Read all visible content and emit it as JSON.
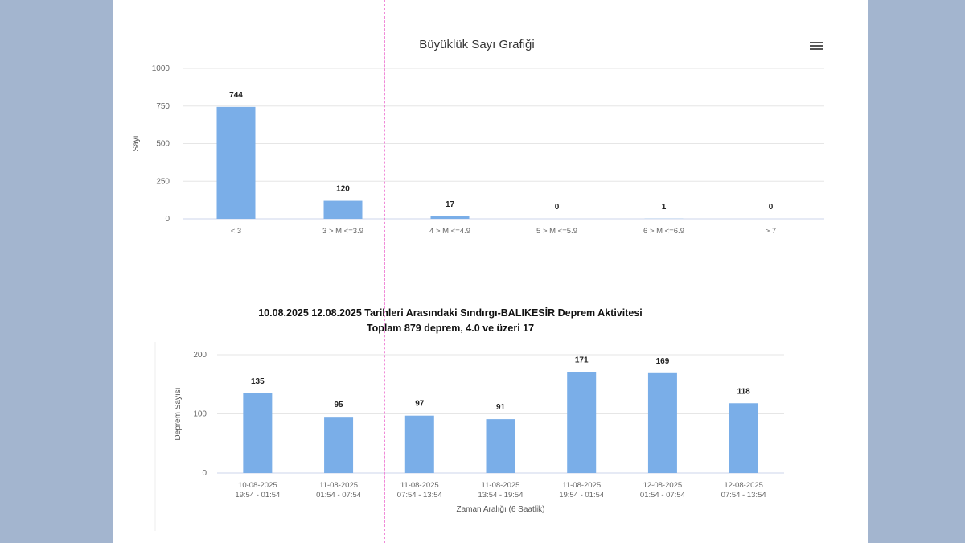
{
  "chart_data": [
    {
      "type": "bar",
      "title": "Büyüklük Sayı Grafiği",
      "ylabel": "Sayı",
      "xlabel": "",
      "ylim": [
        0,
        1000
      ],
      "yticks": [
        0,
        250,
        500,
        750,
        1000
      ],
      "categories": [
        "< 3",
        "3 > M <=3.9",
        "4 > M <=4.9",
        "5 > M <=5.9",
        "6 > M <=6.9",
        "> 7"
      ],
      "values": [
        744,
        120,
        17,
        0,
        1,
        0
      ],
      "color": "#7aaee8",
      "grid": true,
      "menu_icon": "hamburger-menu-icon"
    },
    {
      "type": "bar",
      "title": "10.08.2025 12.08.2025 Tarihleri Arasındaki Sındırgı-BALIKESİR Deprem Aktivitesi",
      "subtitle": "Toplam  879  deprem, 4.0 ve üzeri 17",
      "ylabel": "Deprem Sayısı",
      "xlabel": "Zaman Aralığı (6 Saatlik)",
      "ylim": [
        0,
        200
      ],
      "yticks": [
        0,
        100,
        200
      ],
      "categories": [
        [
          "10-08-2025",
          "19:54 - 01:54"
        ],
        [
          "11-08-2025",
          "01:54 - 07:54"
        ],
        [
          "11-08-2025",
          "07:54 - 13:54"
        ],
        [
          "11-08-2025",
          "13:54 - 19:54"
        ],
        [
          "11-08-2025",
          "19:54 - 01:54"
        ],
        [
          "12-08-2025",
          "01:54 - 07:54"
        ],
        [
          "12-08-2025",
          "07:54 - 13:54"
        ]
      ],
      "values": [
        135,
        95,
        97,
        91,
        171,
        169,
        118
      ],
      "color": "#7aaee8",
      "grid": true
    }
  ]
}
